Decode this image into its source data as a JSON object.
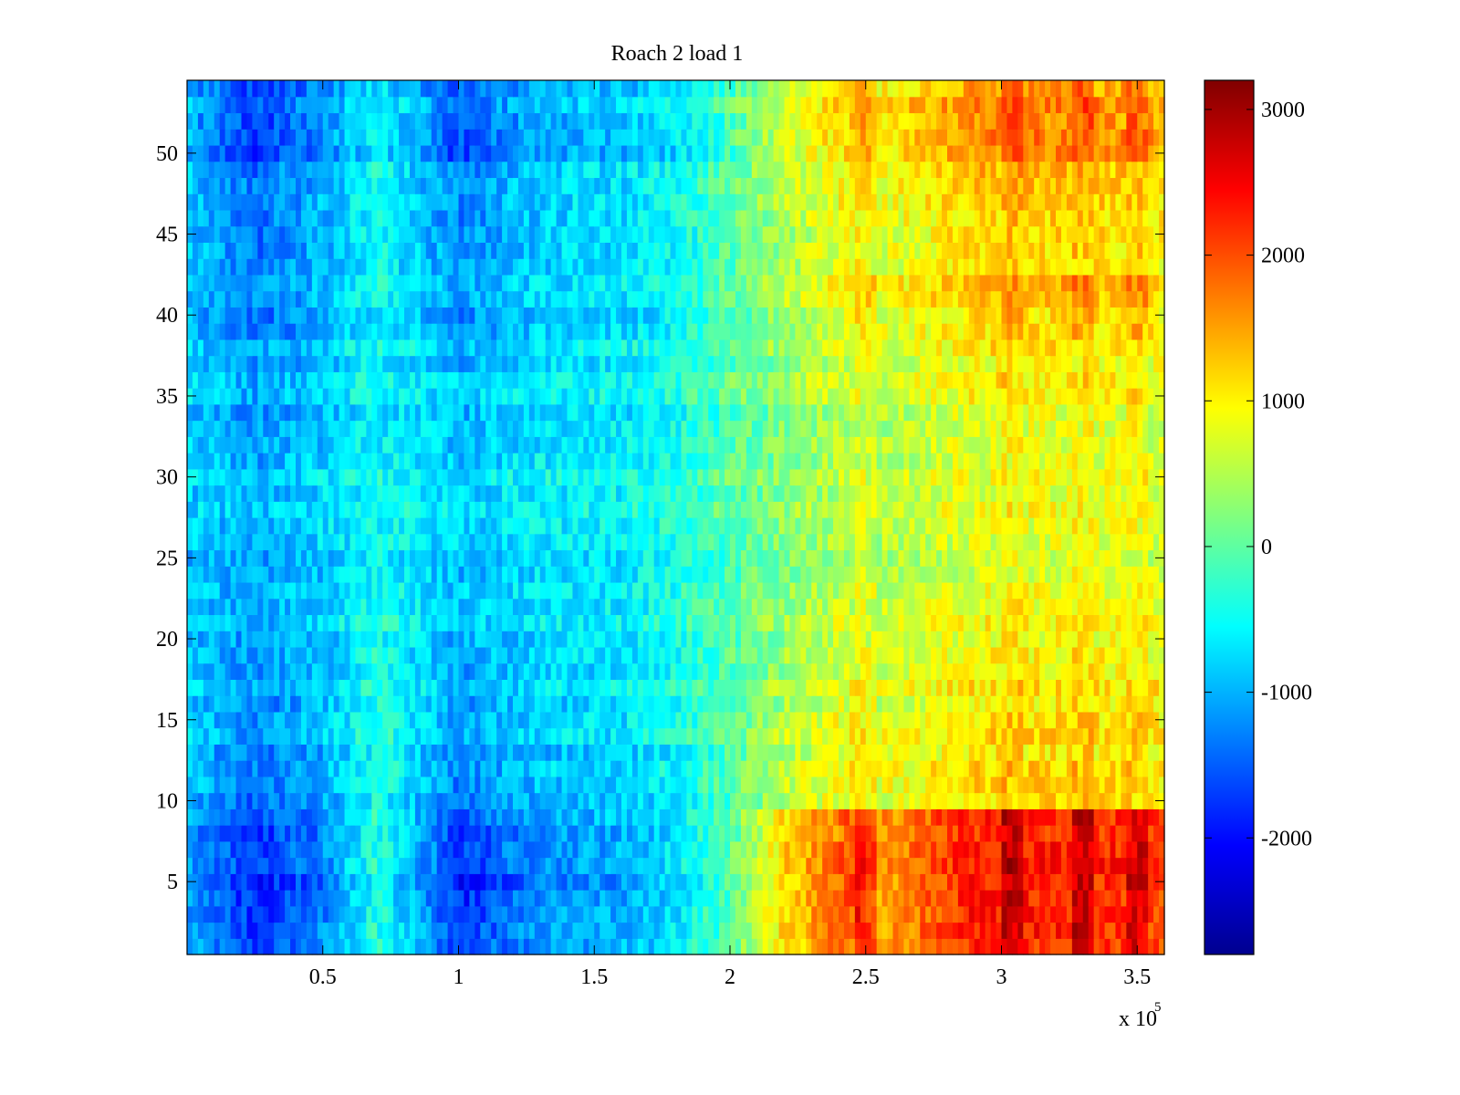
{
  "chart_data": {
    "type": "heatmap",
    "title": "Roach 2 load 1",
    "xlabel": "",
    "ylabel": "",
    "x_multiplier_label": "x 10",
    "x_multiplier_exponent": "5",
    "xlim": [
      0,
      3.6
    ],
    "ylim": [
      0.5,
      54.5
    ],
    "x_ticks": [
      0.5,
      1,
      1.5,
      2,
      2.5,
      3,
      3.5
    ],
    "x_tick_labels": [
      "0.5",
      "1",
      "1.5",
      "2",
      "2.5",
      "3",
      "3.5"
    ],
    "y_ticks": [
      5,
      10,
      15,
      20,
      25,
      30,
      35,
      40,
      45,
      50
    ],
    "y_tick_labels": [
      "5",
      "10",
      "15",
      "20",
      "25",
      "30",
      "35",
      "40",
      "45",
      "50"
    ],
    "rows": 54,
    "colorbar": {
      "colormap": "jet",
      "clim": [
        -2800,
        3200
      ],
      "ticks": [
        -2000,
        -1000,
        0,
        1000,
        2000,
        3000
      ],
      "tick_labels": [
        "-2000",
        "-1000",
        "0",
        "1000",
        "2000",
        "3000"
      ]
    },
    "value_profile_x": [
      0,
      0.25,
      0.5,
      0.7,
      1.0,
      1.3,
      1.6,
      1.8,
      1.95,
      2.2,
      2.45,
      2.55,
      2.7,
      2.9,
      3.2,
      3.5,
      3.6
    ],
    "value_profile_low": [
      -900,
      -1500,
      -1100,
      -300,
      -1500,
      -1000,
      -900,
      -600,
      -200,
      700,
      1200,
      900,
      1100,
      1400,
      1400,
      1300,
      1200
    ],
    "value_profile_mid": [
      -800,
      -900,
      -700,
      -500,
      -650,
      -550,
      -500,
      -300,
      -100,
      150,
      400,
      400,
      500,
      600,
      650,
      650,
      600
    ],
    "value_profile_high": [
      -900,
      -1500,
      -1100,
      -500,
      -1400,
      -900,
      -800,
      -600,
      -200,
      500,
      1000,
      800,
      1000,
      1300,
      1300,
      1200,
      1100
    ],
    "hot_rows": [
      {
        "rows": [
          1,
          9
        ],
        "gain": 1.7
      },
      {
        "rows": [
          39,
          42
        ],
        "gain": 1.2
      },
      {
        "rows": [
          50,
          54
        ],
        "gain": 1.35
      }
    ],
    "hot_x_start": 1.95,
    "stripe_x": [
      2.5,
      3.05,
      3.3,
      3.5
    ]
  }
}
